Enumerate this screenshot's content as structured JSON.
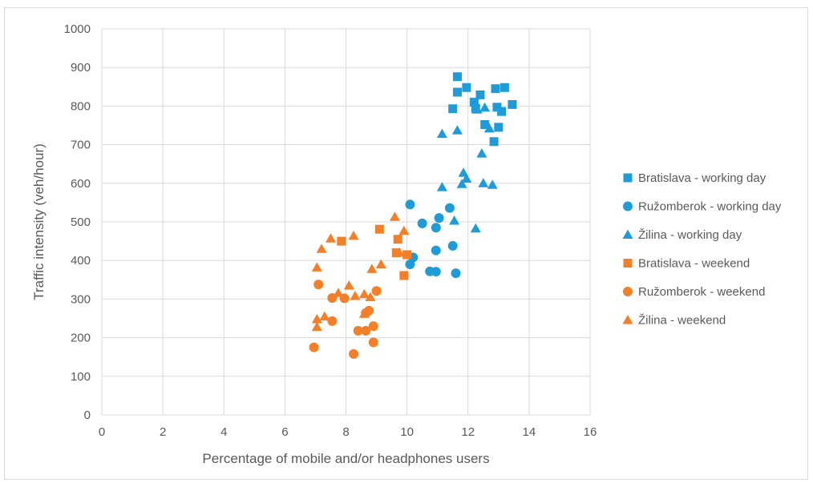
{
  "chart_data": {
    "type": "scatter",
    "title": "",
    "xlabel": "Percentage of mobile and/or headphones users",
    "ylabel": "Traffic intensity (veh/hour)",
    "xlim": [
      0,
      16
    ],
    "ylim": [
      0,
      1000
    ],
    "xticks": [
      "0",
      "2",
      "4",
      "6",
      "8",
      "10",
      "12",
      "14",
      "16"
    ],
    "yticks": [
      "0",
      "100",
      "200",
      "300",
      "400",
      "500",
      "600",
      "700",
      "800",
      "900",
      "1000"
    ],
    "grid": true,
    "legend_position": "right",
    "series": [
      {
        "name": "Bratislava - working day",
        "marker": "square",
        "color": "#1f9bd7",
        "points": [
          [
            11.65,
            876
          ],
          [
            11.95,
            848
          ],
          [
            12.9,
            845
          ],
          [
            13.2,
            848
          ],
          [
            11.65,
            836
          ],
          [
            12.4,
            829
          ],
          [
            12.2,
            810
          ],
          [
            12.95,
            797
          ],
          [
            13.45,
            804
          ],
          [
            11.5,
            793
          ],
          [
            12.25,
            794
          ],
          [
            13.1,
            786
          ],
          [
            12.55,
            752
          ],
          [
            13.0,
            745
          ],
          [
            12.85,
            708
          ]
        ]
      },
      {
        "name": "Ružomberok - working day",
        "marker": "circle",
        "color": "#1f9bd7",
        "points": [
          [
            10.1,
            545
          ],
          [
            11.4,
            536
          ],
          [
            11.05,
            510
          ],
          [
            10.5,
            496
          ],
          [
            10.95,
            485
          ],
          [
            11.5,
            438
          ],
          [
            10.95,
            426
          ],
          [
            10.2,
            408
          ],
          [
            10.1,
            390
          ],
          [
            10.75,
            372
          ],
          [
            10.95,
            371
          ],
          [
            11.6,
            367
          ]
        ]
      },
      {
        "name": "Žilina - working day",
        "marker": "triangle",
        "color": "#1f9bd7",
        "points": [
          [
            12.55,
            796
          ],
          [
            12.3,
            791
          ],
          [
            12.7,
            742
          ],
          [
            11.65,
            737
          ],
          [
            11.15,
            728
          ],
          [
            12.45,
            677
          ],
          [
            11.85,
            627
          ],
          [
            11.95,
            612
          ],
          [
            11.8,
            598
          ],
          [
            12.5,
            600
          ],
          [
            12.8,
            596
          ],
          [
            11.15,
            590
          ],
          [
            11.55,
            503
          ],
          [
            12.25,
            483
          ]
        ]
      },
      {
        "name": "Bratislava - weekend",
        "marker": "square",
        "color": "#f47f29",
        "points": [
          [
            9.1,
            481
          ],
          [
            9.7,
            455
          ],
          [
            7.85,
            450
          ],
          [
            9.65,
            420
          ],
          [
            10.0,
            415
          ],
          [
            9.9,
            361
          ]
        ]
      },
      {
        "name": "Ružomberok - weekend",
        "marker": "circle",
        "color": "#f47f29",
        "points": [
          [
            7.1,
            338
          ],
          [
            9.0,
            321
          ],
          [
            7.55,
            303
          ],
          [
            7.95,
            302
          ],
          [
            8.75,
            270
          ],
          [
            8.65,
            264
          ],
          [
            7.55,
            243
          ],
          [
            8.9,
            230
          ],
          [
            8.4,
            218
          ],
          [
            8.65,
            218
          ],
          [
            8.9,
            188
          ],
          [
            6.95,
            175
          ],
          [
            8.25,
            158
          ]
        ]
      },
      {
        "name": "Žilina - weekend",
        "marker": "triangle",
        "color": "#f47f29",
        "points": [
          [
            9.6,
            513
          ],
          [
            9.9,
            477
          ],
          [
            8.25,
            464
          ],
          [
            7.5,
            457
          ],
          [
            7.2,
            430
          ],
          [
            9.75,
            420
          ],
          [
            9.15,
            390
          ],
          [
            8.85,
            378
          ],
          [
            7.05,
            382
          ],
          [
            8.1,
            335
          ],
          [
            7.75,
            316
          ],
          [
            8.3,
            308
          ],
          [
            8.6,
            313
          ],
          [
            8.8,
            305
          ],
          [
            8.6,
            262
          ],
          [
            7.3,
            255
          ],
          [
            7.05,
            248
          ],
          [
            7.05,
            228
          ]
        ]
      }
    ]
  }
}
